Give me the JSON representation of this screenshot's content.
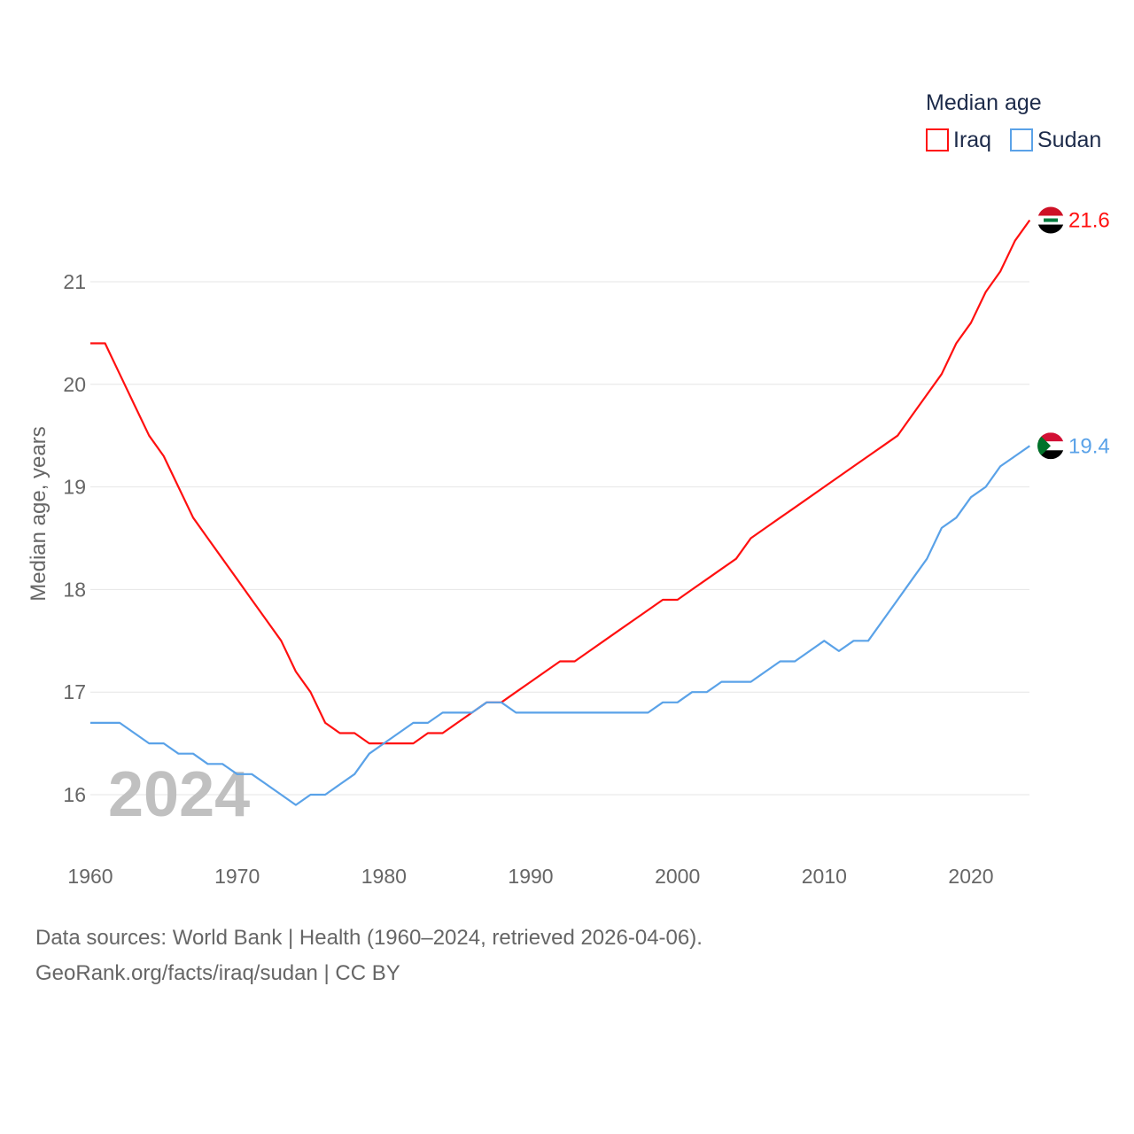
{
  "chart_data": {
    "type": "line",
    "title": "",
    "ylabel": "Median age, years",
    "xlabel": "",
    "xlim": [
      1960,
      2024
    ],
    "ylim": [
      15.6,
      21.9
    ],
    "xticks": [
      "1960",
      "1970",
      "1980",
      "1990",
      "2000",
      "2010",
      "2020"
    ],
    "yticks": [
      "16",
      "17",
      "18",
      "19",
      "20",
      "21"
    ],
    "grid": true,
    "legend": {
      "title": "Median age",
      "position": "top-right"
    },
    "year_label": "2024",
    "x": [
      1960,
      1961,
      1962,
      1963,
      1964,
      1965,
      1966,
      1967,
      1968,
      1969,
      1970,
      1971,
      1972,
      1973,
      1974,
      1975,
      1976,
      1977,
      1978,
      1979,
      1980,
      1981,
      1982,
      1983,
      1984,
      1985,
      1986,
      1987,
      1988,
      1989,
      1990,
      1991,
      1992,
      1993,
      1994,
      1995,
      1996,
      1997,
      1998,
      1999,
      2000,
      2001,
      2002,
      2003,
      2004,
      2005,
      2006,
      2007,
      2008,
      2009,
      2010,
      2011,
      2012,
      2013,
      2014,
      2015,
      2016,
      2017,
      2018,
      2019,
      2020,
      2021,
      2022,
      2023,
      2024
    ],
    "series": [
      {
        "name": "Iraq",
        "color": "#ff1010",
        "end_label": "21.6",
        "values": [
          20.4,
          20.4,
          20.1,
          19.8,
          19.5,
          19.3,
          19.0,
          18.7,
          18.5,
          18.3,
          18.1,
          17.9,
          17.7,
          17.5,
          17.2,
          17.0,
          16.7,
          16.6,
          16.6,
          16.5,
          16.5,
          16.5,
          16.5,
          16.6,
          16.6,
          16.7,
          16.8,
          16.9,
          16.9,
          17.0,
          17.1,
          17.2,
          17.3,
          17.3,
          17.4,
          17.5,
          17.6,
          17.7,
          17.8,
          17.9,
          17.9,
          18.0,
          18.1,
          18.2,
          18.3,
          18.5,
          18.6,
          18.7,
          18.8,
          18.9,
          19.0,
          19.1,
          19.2,
          19.3,
          19.4,
          19.5,
          19.7,
          19.9,
          20.1,
          20.4,
          20.6,
          20.9,
          21.1,
          21.4,
          21.6
        ]
      },
      {
        "name": "Sudan",
        "color": "#5aa2e8",
        "end_label": "19.4",
        "values": [
          16.7,
          16.7,
          16.7,
          16.6,
          16.5,
          16.5,
          16.4,
          16.4,
          16.3,
          16.3,
          16.2,
          16.2,
          16.1,
          16.0,
          15.9,
          16.0,
          16.0,
          16.1,
          16.2,
          16.4,
          16.5,
          16.6,
          16.7,
          16.7,
          16.8,
          16.8,
          16.8,
          16.9,
          16.9,
          16.8,
          16.8,
          16.8,
          16.8,
          16.8,
          16.8,
          16.8,
          16.8,
          16.8,
          16.8,
          16.9,
          16.9,
          17.0,
          17.0,
          17.1,
          17.1,
          17.1,
          17.2,
          17.3,
          17.3,
          17.4,
          17.5,
          17.4,
          17.5,
          17.5,
          17.7,
          17.9,
          18.1,
          18.3,
          18.6,
          18.7,
          18.9,
          19.0,
          19.2,
          19.3,
          19.4
        ]
      }
    ]
  },
  "footer": {
    "line1": "Data sources: World Bank | Health (1960–2024, retrieved 2026-04-06).",
    "line2": "GeoRank.org/facts/iraq/sudan | CC BY"
  }
}
